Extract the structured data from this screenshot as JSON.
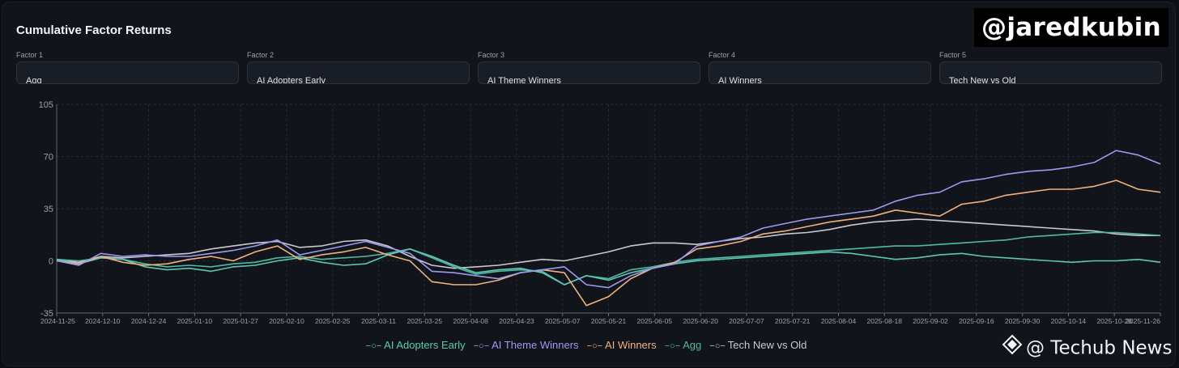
{
  "chart_title": "Cumulative Factor Returns",
  "factors": [
    {
      "label": "Factor 1",
      "value": "Agg"
    },
    {
      "label": "Factor 2",
      "value": "AI Adopters Early"
    },
    {
      "label": "Factor 3",
      "value": "AI Theme Winners"
    },
    {
      "label": "Factor 4",
      "value": "AI Winners"
    },
    {
      "label": "Factor 5",
      "value": "Tech New vs Old"
    }
  ],
  "watermarks": {
    "top": "@jaredkubin",
    "bottom": "@ Techub News"
  },
  "colors": {
    "AI Adopters Early": "#5ec8b4",
    "AI Theme Winners": "#9d9af0",
    "AI Winners": "#f0b27e",
    "Agg": "#4fb8a6",
    "Tech New vs Old": "#c9c9cf"
  },
  "chart_data": {
    "type": "line",
    "title": "Cumulative Factor Returns",
    "xlabel": "",
    "ylabel": "",
    "ylim": [
      -35,
      105
    ],
    "yticks": [
      -35,
      0,
      35,
      70,
      105
    ],
    "grid": true,
    "legend_position": "bottom",
    "xticks": [
      "2024-11-25",
      "2024-12-10",
      "2024-12-24",
      "2025-01-10",
      "2025-01-27",
      "2025-02-10",
      "2025-02-25",
      "2025-03-11",
      "2025-03-25",
      "2025-04-08",
      "2025-04-23",
      "2025-05-07",
      "2025-05-21",
      "2025-06-05",
      "2025-06-20",
      "2025-07-07",
      "2025-07-21",
      "2025-08-04",
      "2025-08-18",
      "2025-09-02",
      "2025-09-16",
      "2025-09-30",
      "2025-10-14",
      "2025-10-28",
      "2025-11-26"
    ],
    "series": [
      {
        "name": "AI Adopters Early",
        "values": [
          1,
          -2,
          2,
          1,
          -4,
          -6,
          -5,
          -7,
          -4,
          -3,
          0,
          2,
          -1,
          -3,
          -2,
          4,
          8,
          3,
          -3,
          -8,
          -6,
          -5,
          -8,
          -16,
          -10,
          -13,
          -8,
          -5,
          -2,
          0,
          1,
          2,
          3,
          4,
          5,
          6,
          5,
          3,
          1,
          2,
          4,
          5,
          3,
          2,
          1,
          0,
          -1,
          0,
          0,
          1,
          -1
        ]
      },
      {
        "name": "AI Theme Winners",
        "values": [
          0,
          -3,
          5,
          3,
          4,
          3,
          3,
          5,
          7,
          10,
          14,
          4,
          7,
          10,
          13,
          9,
          5,
          -7,
          -8,
          -10,
          -12,
          -8,
          -6,
          -4,
          -16,
          -18,
          -10,
          -5,
          -2,
          10,
          13,
          16,
          22,
          25,
          28,
          30,
          32,
          34,
          40,
          44,
          46,
          53,
          55,
          58,
          60,
          61,
          63,
          66,
          74,
          71,
          65
        ]
      },
      {
        "name": "AI Winners",
        "values": [
          0,
          -2,
          3,
          -1,
          -3,
          -2,
          1,
          3,
          0,
          6,
          10,
          1,
          4,
          6,
          9,
          4,
          0,
          -14,
          -16,
          -16,
          -13,
          -8,
          -6,
          -8,
          -30,
          -24,
          -12,
          -5,
          -1,
          8,
          10,
          13,
          18,
          20,
          23,
          26,
          28,
          30,
          34,
          32,
          30,
          38,
          40,
          44,
          46,
          48,
          48,
          50,
          54,
          48,
          46
        ]
      },
      {
        "name": "Agg",
        "values": [
          1,
          0,
          2,
          1,
          -2,
          -4,
          -3,
          -4,
          -2,
          -1,
          2,
          3,
          1,
          2,
          3,
          5,
          8,
          2,
          -4,
          -9,
          -7,
          -6,
          -7,
          -16,
          -10,
          -12,
          -6,
          -4,
          -1,
          1,
          2,
          3,
          4,
          5,
          6,
          7,
          8,
          9,
          10,
          10,
          11,
          12,
          13,
          14,
          16,
          17,
          18,
          19,
          19,
          18,
          17
        ]
      },
      {
        "name": "Tech New vs Old",
        "values": [
          1,
          -1,
          3,
          2,
          3,
          4,
          5,
          8,
          10,
          12,
          13,
          9,
          10,
          13,
          14,
          10,
          3,
          -3,
          -5,
          -4,
          -3,
          -1,
          1,
          0,
          3,
          6,
          10,
          12,
          12,
          11,
          13,
          15,
          16,
          18,
          19,
          21,
          24,
          26,
          27,
          28,
          27,
          26,
          25,
          24,
          23,
          22,
          21,
          20,
          18,
          17,
          17
        ]
      }
    ]
  }
}
